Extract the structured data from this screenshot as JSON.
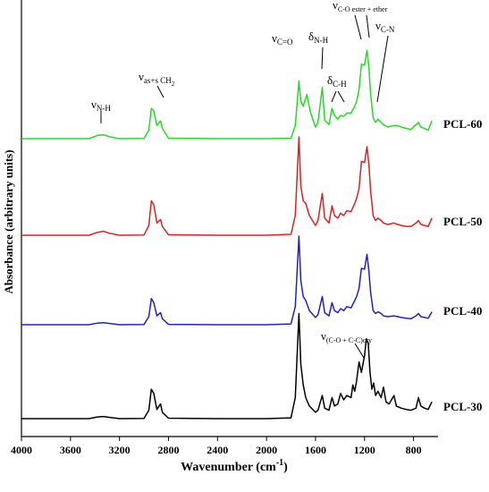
{
  "chart_data": {
    "type": "line",
    "xlabel": "Wavenumber (cm",
    "xlabel_sup": "-1",
    "xlabel_close": ")",
    "ylabel": "Absorbance (arbitrary units)",
    "xlim": [
      4000,
      600
    ],
    "x_reversed": true,
    "x_ticks": [
      4000,
      3600,
      3200,
      2800,
      2400,
      2000,
      1600,
      1200,
      800
    ],
    "x_tick_labels": [
      "4000",
      "3600",
      "3200",
      "2800",
      "2400",
      "2000",
      "1600",
      "1200",
      "800"
    ],
    "grid": false,
    "legend": "none",
    "series": [
      {
        "name": "PCL-60",
        "color": "#22dd22",
        "baseline": 0.2,
        "points": [
          [
            4000,
            0.2
          ],
          [
            3700,
            0.2
          ],
          [
            3450,
            0.2
          ],
          [
            3380,
            0.27
          ],
          [
            3330,
            0.28
          ],
          [
            3280,
            0.24
          ],
          [
            3200,
            0.2
          ],
          [
            3000,
            0.205
          ],
          [
            2960,
            0.38
          ],
          [
            2940,
            0.85
          ],
          [
            2920,
            0.8
          ],
          [
            2895,
            0.48
          ],
          [
            2865,
            0.58
          ],
          [
            2850,
            0.42
          ],
          [
            2800,
            0.21
          ],
          [
            2400,
            0.2
          ],
          [
            2000,
            0.2
          ],
          [
            1800,
            0.21
          ],
          [
            1765,
            0.48
          ],
          [
            1735,
            1.44
          ],
          [
            1720,
            1.0
          ],
          [
            1700,
            0.9
          ],
          [
            1670,
            1.15
          ],
          [
            1640,
            0.75
          ],
          [
            1600,
            0.45
          ],
          [
            1580,
            0.55
          ],
          [
            1545,
            1.3
          ],
          [
            1525,
            0.6
          ],
          [
            1490,
            0.5
          ],
          [
            1465,
            0.85
          ],
          [
            1445,
            0.7
          ],
          [
            1418,
            0.62
          ],
          [
            1395,
            0.7
          ],
          [
            1370,
            0.68
          ],
          [
            1345,
            0.75
          ],
          [
            1310,
            0.75
          ],
          [
            1280,
            0.9
          ],
          [
            1265,
            1.0
          ],
          [
            1245,
            1.25
          ],
          [
            1225,
            1.8
          ],
          [
            1200,
            1.78
          ],
          [
            1180,
            2.1
          ],
          [
            1165,
            1.75
          ],
          [
            1150,
            1.15
          ],
          [
            1130,
            0.65
          ],
          [
            1110,
            0.55
          ],
          [
            1090,
            0.62
          ],
          [
            1065,
            0.55
          ],
          [
            1045,
            0.5
          ],
          [
            1010,
            0.45
          ],
          [
            960,
            0.48
          ],
          [
            930,
            0.48
          ],
          [
            900,
            0.45
          ],
          [
            860,
            0.42
          ],
          [
            820,
            0.4
          ],
          [
            780,
            0.5
          ],
          [
            760,
            0.55
          ],
          [
            740,
            0.45
          ],
          [
            710,
            0.42
          ],
          [
            680,
            0.38
          ],
          [
            650,
            0.58
          ]
        ]
      },
      {
        "name": "PCL-50",
        "color": "#e02020",
        "baseline": 0.2,
        "points": [
          [
            4000,
            0.2
          ],
          [
            3700,
            0.2
          ],
          [
            3450,
            0.2
          ],
          [
            3380,
            0.26
          ],
          [
            3330,
            0.28
          ],
          [
            3280,
            0.24
          ],
          [
            3200,
            0.2
          ],
          [
            3000,
            0.205
          ],
          [
            2960,
            0.4
          ],
          [
            2940,
            0.9
          ],
          [
            2920,
            0.82
          ],
          [
            2895,
            0.45
          ],
          [
            2865,
            0.52
          ],
          [
            2850,
            0.38
          ],
          [
            2800,
            0.21
          ],
          [
            2400,
            0.2
          ],
          [
            2000,
            0.2
          ],
          [
            1800,
            0.22
          ],
          [
            1765,
            0.6
          ],
          [
            1735,
            2.2
          ],
          [
            1720,
            1.2
          ],
          [
            1700,
            0.9
          ],
          [
            1680,
            0.85
          ],
          [
            1650,
            0.6
          ],
          [
            1600,
            0.4
          ],
          [
            1580,
            0.5
          ],
          [
            1545,
            1.05
          ],
          [
            1525,
            0.55
          ],
          [
            1490,
            0.45
          ],
          [
            1465,
            0.8
          ],
          [
            1445,
            0.6
          ],
          [
            1418,
            0.55
          ],
          [
            1395,
            0.65
          ],
          [
            1370,
            0.6
          ],
          [
            1345,
            0.7
          ],
          [
            1310,
            0.68
          ],
          [
            1280,
            0.85
          ],
          [
            1265,
            0.95
          ],
          [
            1245,
            1.15
          ],
          [
            1225,
            1.7
          ],
          [
            1200,
            1.68
          ],
          [
            1180,
            2.0
          ],
          [
            1165,
            1.65
          ],
          [
            1150,
            1.1
          ],
          [
            1130,
            0.6
          ],
          [
            1110,
            0.5
          ],
          [
            1090,
            0.55
          ],
          [
            1065,
            0.5
          ],
          [
            1045,
            0.45
          ],
          [
            1010,
            0.42
          ],
          [
            960,
            0.45
          ],
          [
            930,
            0.42
          ],
          [
            900,
            0.4
          ],
          [
            860,
            0.38
          ],
          [
            820,
            0.38
          ],
          [
            780,
            0.45
          ],
          [
            760,
            0.5
          ],
          [
            740,
            0.42
          ],
          [
            710,
            0.4
          ],
          [
            680,
            0.38
          ],
          [
            650,
            0.55
          ]
        ]
      },
      {
        "name": "PCL-40",
        "color": "#2020d0",
        "baseline": 0.2,
        "points": [
          [
            4000,
            0.2
          ],
          [
            3700,
            0.2
          ],
          [
            3450,
            0.2
          ],
          [
            3380,
            0.24
          ],
          [
            3330,
            0.25
          ],
          [
            3280,
            0.23
          ],
          [
            3200,
            0.2
          ],
          [
            3000,
            0.205
          ],
          [
            2960,
            0.4
          ],
          [
            2940,
            0.85
          ],
          [
            2920,
            0.75
          ],
          [
            2895,
            0.42
          ],
          [
            2865,
            0.5
          ],
          [
            2850,
            0.35
          ],
          [
            2800,
            0.21
          ],
          [
            2400,
            0.2
          ],
          [
            2000,
            0.2
          ],
          [
            1800,
            0.22
          ],
          [
            1765,
            0.65
          ],
          [
            1735,
            2.4
          ],
          [
            1720,
            1.3
          ],
          [
            1700,
            0.9
          ],
          [
            1680,
            0.8
          ],
          [
            1650,
            0.55
          ],
          [
            1600,
            0.38
          ],
          [
            1580,
            0.45
          ],
          [
            1545,
            0.9
          ],
          [
            1525,
            0.5
          ],
          [
            1490,
            0.42
          ],
          [
            1465,
            0.75
          ],
          [
            1445,
            0.55
          ],
          [
            1418,
            0.5
          ],
          [
            1395,
            0.6
          ],
          [
            1370,
            0.55
          ],
          [
            1345,
            0.65
          ],
          [
            1310,
            0.62
          ],
          [
            1280,
            0.8
          ],
          [
            1265,
            0.9
          ],
          [
            1245,
            1.1
          ],
          [
            1225,
            1.6
          ],
          [
            1200,
            1.58
          ],
          [
            1180,
            1.95
          ],
          [
            1165,
            1.55
          ],
          [
            1150,
            1.0
          ],
          [
            1130,
            0.55
          ],
          [
            1110,
            0.48
          ],
          [
            1090,
            0.52
          ],
          [
            1065,
            0.48
          ],
          [
            1045,
            0.42
          ],
          [
            1010,
            0.4
          ],
          [
            960,
            0.42
          ],
          [
            930,
            0.4
          ],
          [
            900,
            0.38
          ],
          [
            860,
            0.36
          ],
          [
            820,
            0.35
          ],
          [
            780,
            0.42
          ],
          [
            760,
            0.48
          ],
          [
            740,
            0.4
          ],
          [
            710,
            0.38
          ],
          [
            680,
            0.36
          ],
          [
            650,
            0.52
          ]
        ]
      },
      {
        "name": "PCL-30",
        "color": "#000000",
        "baseline": 0.2,
        "points": [
          [
            4000,
            0.2
          ],
          [
            3700,
            0.2
          ],
          [
            3450,
            0.2
          ],
          [
            3380,
            0.24
          ],
          [
            3330,
            0.25
          ],
          [
            3280,
            0.23
          ],
          [
            3200,
            0.2
          ],
          [
            3000,
            0.205
          ],
          [
            2960,
            0.4
          ],
          [
            2940,
            0.9
          ],
          [
            2920,
            0.8
          ],
          [
            2895,
            0.42
          ],
          [
            2865,
            0.55
          ],
          [
            2850,
            0.35
          ],
          [
            2800,
            0.21
          ],
          [
            2400,
            0.2
          ],
          [
            2000,
            0.2
          ],
          [
            1800,
            0.22
          ],
          [
            1765,
            0.7
          ],
          [
            1735,
            2.7
          ],
          [
            1720,
            1.5
          ],
          [
            1700,
            1.0
          ],
          [
            1680,
            0.7
          ],
          [
            1650,
            0.5
          ],
          [
            1600,
            0.35
          ],
          [
            1580,
            0.4
          ],
          [
            1545,
            0.75
          ],
          [
            1525,
            0.45
          ],
          [
            1490,
            0.4
          ],
          [
            1465,
            0.7
          ],
          [
            1445,
            0.5
          ],
          [
            1418,
            0.55
          ],
          [
            1395,
            0.8
          ],
          [
            1370,
            0.65
          ],
          [
            1345,
            0.75
          ],
          [
            1310,
            0.7
          ],
          [
            1295,
            1.0
          ],
          [
            1280,
            0.85
          ],
          [
            1265,
            1.1
          ],
          [
            1245,
            1.55
          ],
          [
            1225,
            1.3
          ],
          [
            1200,
            1.7
          ],
          [
            1185,
            2.1
          ],
          [
            1170,
            2.0
          ],
          [
            1155,
            1.3
          ],
          [
            1140,
            0.9
          ],
          [
            1125,
            1.05
          ],
          [
            1110,
            0.75
          ],
          [
            1090,
            0.85
          ],
          [
            1065,
            0.7
          ],
          [
            1045,
            0.95
          ],
          [
            1025,
            0.6
          ],
          [
            1000,
            0.55
          ],
          [
            960,
            0.75
          ],
          [
            940,
            0.5
          ],
          [
            900,
            0.45
          ],
          [
            860,
            0.42
          ],
          [
            820,
            0.4
          ],
          [
            780,
            0.45
          ],
          [
            760,
            0.7
          ],
          [
            740,
            0.5
          ],
          [
            710,
            0.45
          ],
          [
            680,
            0.42
          ],
          [
            650,
            0.6
          ]
        ]
      }
    ],
    "annotations": [
      {
        "main": "ν",
        "sub": "N-H"
      },
      {
        "main": "ν",
        "sub": "as+s CH",
        "sub2": "2"
      },
      {
        "main": "ν",
        "sub": "C=O"
      },
      {
        "main": "δ",
        "sub": "N-H"
      },
      {
        "main": "δ",
        "sub": "C-H"
      },
      {
        "main": "ν",
        "sub": "C-O ester + ether"
      },
      {
        "main": "ν",
        "sub": "C-N"
      },
      {
        "main": "ν",
        "sub": "(C-O + C-C)cry"
      }
    ]
  }
}
